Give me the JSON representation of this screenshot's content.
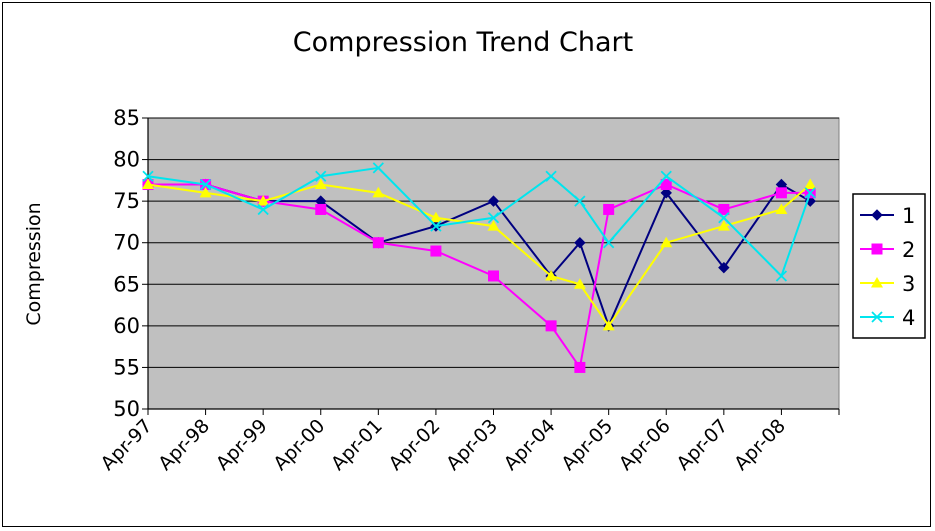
{
  "chart_data": {
    "type": "line",
    "title": "Compression Trend Chart",
    "xlabel": "",
    "ylabel": "Compression",
    "ylim": [
      50,
      85
    ],
    "yticks": [
      "50",
      "55",
      "60",
      "65",
      "70",
      "75",
      "80",
      "85"
    ],
    "xticks": [
      "Apr-97",
      "Apr-98",
      "Apr-99",
      "Apr-00",
      "Apr-01",
      "Apr-02",
      "Apr-03",
      "Apr-04",
      "Apr-05",
      "Apr-06",
      "Apr-07",
      "Apr-08"
    ],
    "grid": true,
    "legend": "right",
    "plot_background": "#c0c0c0",
    "x": [
      "1997-04",
      "1998-04",
      "1999-04",
      "2000-04",
      "2001-04",
      "2002-04",
      "2003-04",
      "2004-04",
      "2004-10",
      "2005-04",
      "2006-04",
      "2007-04",
      "2008-04",
      "2008-10"
    ],
    "series": [
      {
        "name": "1",
        "color": "#000080",
        "marker": "diamond",
        "values": [
          77,
          77,
          75,
          75,
          70,
          72,
          75,
          66,
          70,
          60,
          76,
          67,
          77,
          75
        ]
      },
      {
        "name": "2",
        "color": "#ff00ff",
        "marker": "square",
        "values": [
          77,
          77,
          75,
          74,
          70,
          69,
          66,
          60,
          55,
          74,
          77,
          74,
          76,
          76
        ]
      },
      {
        "name": "3",
        "color": "#ffff00",
        "marker": "triangle",
        "values": [
          77,
          76,
          75,
          77,
          76,
          73,
          72,
          66,
          65,
          60,
          70,
          72,
          74,
          77
        ]
      },
      {
        "name": "4",
        "color": "#00e5ee",
        "marker": "x",
        "values": [
          78,
          77,
          74,
          78,
          79,
          72,
          73,
          78,
          75,
          70,
          78,
          73,
          66,
          76
        ]
      }
    ]
  }
}
